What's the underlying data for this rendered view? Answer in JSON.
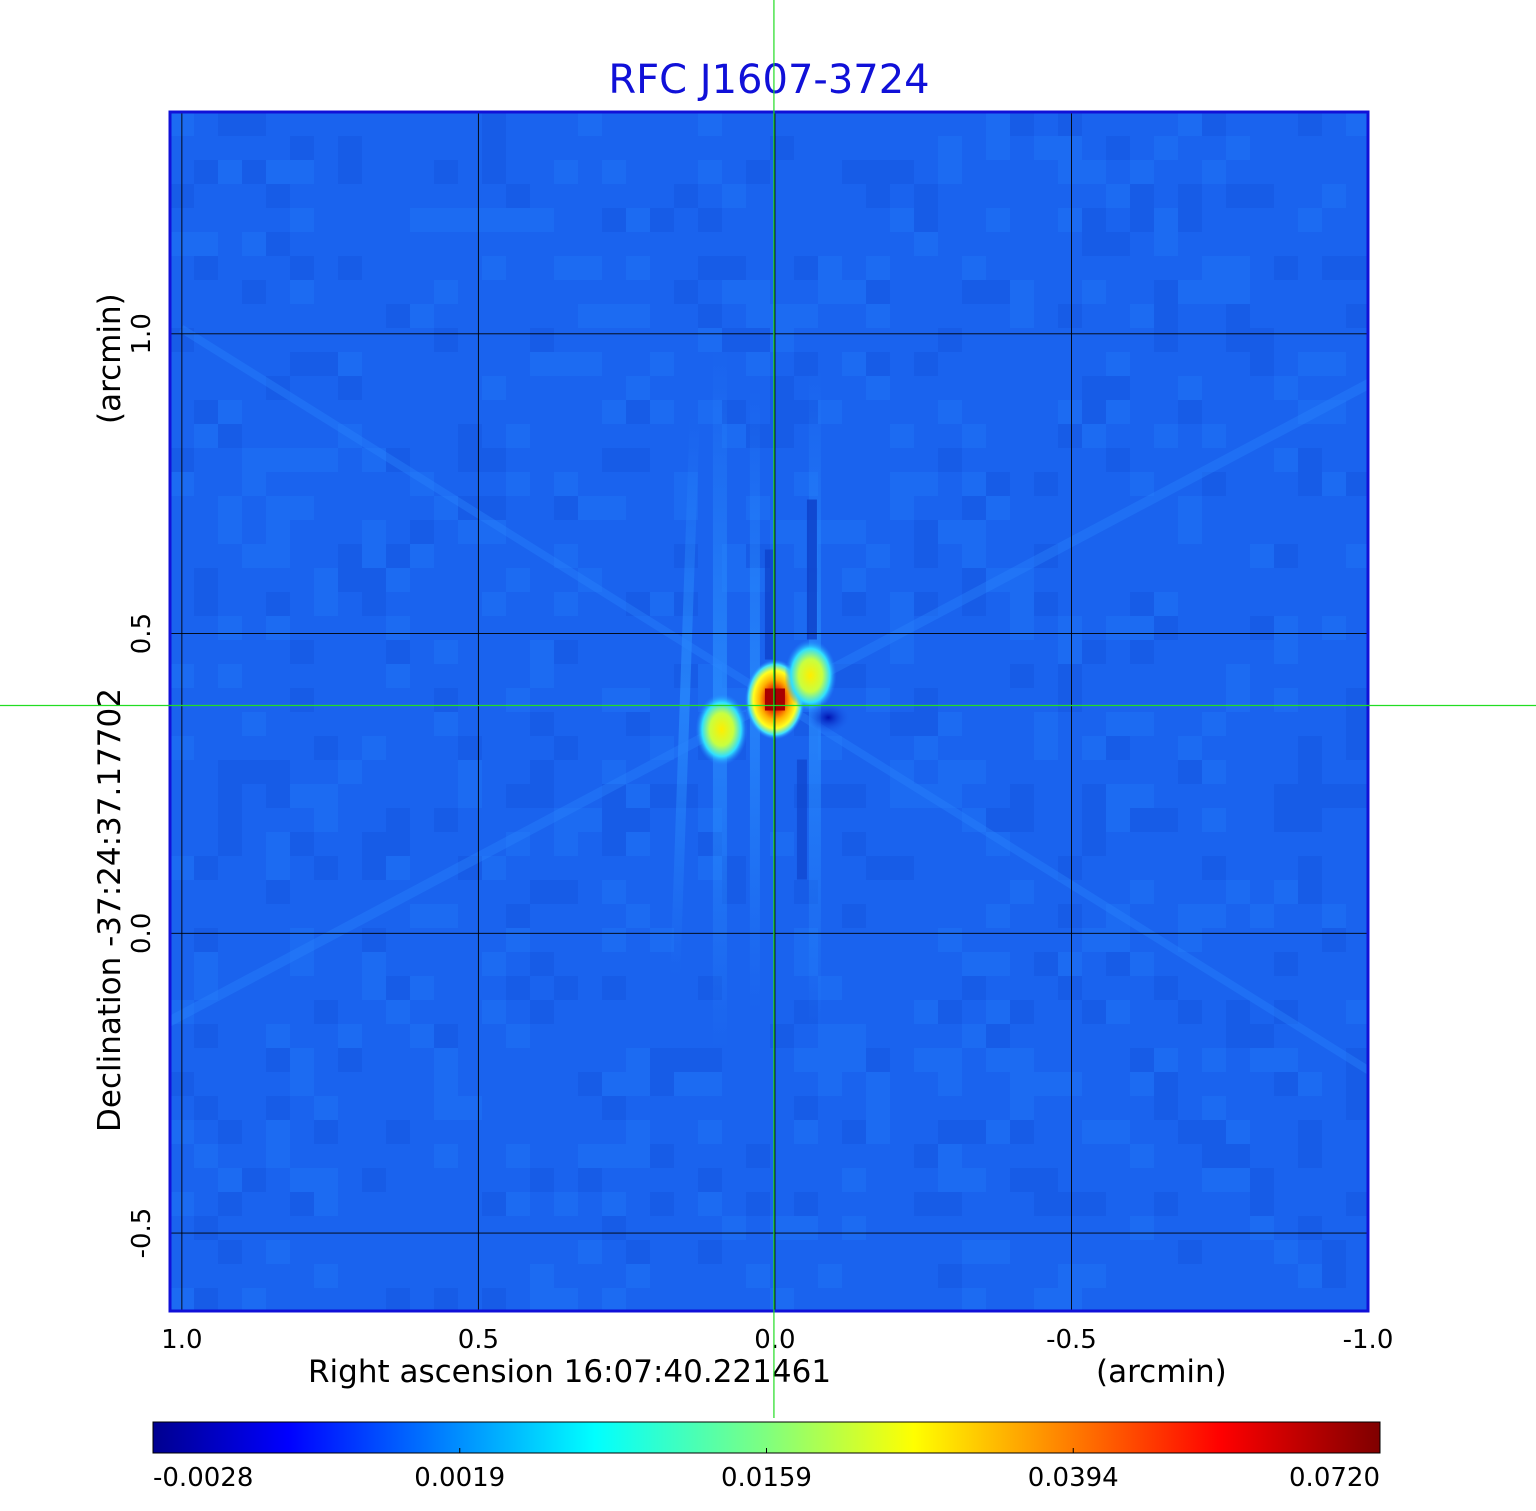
{
  "chart_data": {
    "type": "heatmap",
    "title": "RFC J1607-3724",
    "xlabel": "Right ascension  16:07:40.221461",
    "xunit": "(arcmin)",
    "ylabel": "Declination  -37:24:37.17702",
    "yunit": "(arcmin)",
    "xlim": [
      1.02,
      -1.0
    ],
    "ylim": [
      -0.63,
      1.37
    ],
    "x_ticks": [
      1.0,
      0.5,
      0.0,
      -0.5,
      -1.0
    ],
    "x_tick_labels": [
      "1.0",
      "0.5",
      "0.0",
      "-0.5",
      "-1.0"
    ],
    "y_ticks": [
      -0.5,
      0.0,
      0.5,
      1.0
    ],
    "y_tick_labels": [
      "-0.5",
      "0.0",
      "0.5",
      "1.0"
    ],
    "grid": true,
    "crosshair": {
      "x": 0.0,
      "y": 0.38,
      "color": "#22dd22"
    },
    "colormap": "jet",
    "colorbar": {
      "placement": "bottom",
      "tick_labels": [
        "-0.0028",
        "0.0019",
        "0.0159",
        "0.0394",
        "0.0720"
      ],
      "tick_fractions": [
        0.0,
        0.25,
        0.5,
        0.75,
        1.0
      ]
    },
    "background_level": 0.0005,
    "components": [
      {
        "name": "core",
        "x": 0.0,
        "y": 0.39,
        "peak": 0.072
      },
      {
        "name": "northwest blob",
        "x": -0.06,
        "y": 0.43,
        "peak": 0.03
      },
      {
        "name": "southeast blob",
        "x": 0.09,
        "y": 0.34,
        "peak": 0.032
      },
      {
        "name": "negative dip",
        "x": -0.09,
        "y": 0.36,
        "peak": -0.0028
      }
    ]
  }
}
